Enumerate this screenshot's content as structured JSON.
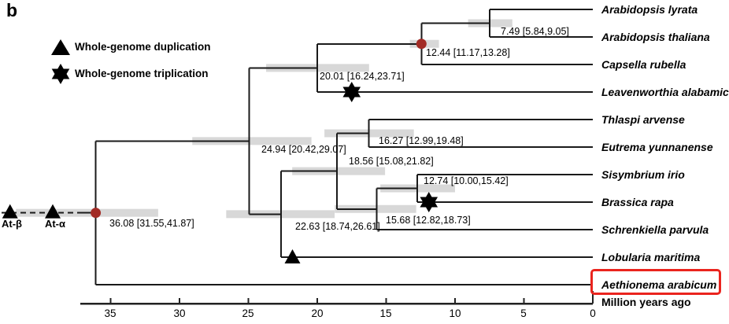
{
  "panel_label": "b",
  "legend": {
    "duplication": "Whole-genome duplication",
    "triplication": "Whole-genome triplication"
  },
  "colors": {
    "branch": "#1a1a1a",
    "ci_bar": "#d8d8d8",
    "node_dot": "#a22b25",
    "highlight_box": "#ea241e",
    "marker": "#000000"
  },
  "chart_data": {
    "type": "phylogenetic_tree",
    "time_axis": {
      "label": "Million years ago",
      "ticks": [
        35,
        30,
        25,
        20,
        15,
        10,
        5,
        0
      ]
    },
    "tips": [
      "Arabidopsis lyrata",
      "Arabidopsis thaliana",
      "Capsella rubella",
      "Leavenworthia alabamica",
      "Thlaspi arvense",
      "Eutrema yunnanense",
      "Sisymbrium irio",
      "Brassica rapa",
      "Schrenkiella parvula",
      "Lobularia maritima",
      "Aethionema arabicum"
    ],
    "highlighted_tip": "Aethionema arabicum",
    "nodes": {
      "n36_08": {
        "age": 36.08,
        "ci": [
          31.55,
          41.87
        ],
        "label": "36.08 [31.55,41.87]",
        "dot": true
      },
      "n24_94": {
        "age": 24.94,
        "ci": [
          20.42,
          29.07
        ],
        "label": "24.94 [20.42,29.07]"
      },
      "n20_01": {
        "age": 20.01,
        "ci": [
          16.24,
          23.71
        ],
        "label": "20.01 [16.24,23.71]"
      },
      "n12_44": {
        "age": 12.44,
        "ci": [
          11.17,
          13.28
        ],
        "label": "12.44 [11.17,13.28]",
        "dot": true
      },
      "n7_49": {
        "age": 7.49,
        "ci": [
          5.84,
          9.05
        ],
        "label": "7.49 [5.84,9.05]"
      },
      "n16_27": {
        "age": 16.27,
        "ci": [
          12.99,
          19.48
        ],
        "label": "16.27 [12.99,19.48]"
      },
      "n18_56": {
        "age": 18.56,
        "ci": [
          15.08,
          21.82
        ],
        "label": "18.56 [15.08,21.82]"
      },
      "n12_74": {
        "age": 12.74,
        "ci": [
          10.0,
          15.42
        ],
        "label": "12.74 [10.00,15.42]"
      },
      "n15_68": {
        "age": 15.68,
        "ci": [
          12.82,
          18.73
        ],
        "label": "15.68 [12.82,18.73]"
      },
      "n22_63": {
        "age": 22.63,
        "ci": [
          18.74,
          26.61
        ],
        "label": "22.63 [18.74,26.61]"
      }
    },
    "tree": {
      "id": "n36_08",
      "children": [
        {
          "id": "n24_94",
          "children": [
            {
              "id": "n20_01",
              "children": [
                {
                  "id": "n12_44",
                  "children": [
                    {
                      "id": "n7_49",
                      "children": [
                        {
                          "tip": 0
                        },
                        {
                          "tip": 1
                        }
                      ]
                    },
                    {
                      "tip": 2
                    }
                  ]
                },
                {
                  "tip": 3,
                  "marker": {
                    "type": "triplication",
                    "mya": 17.5
                  }
                }
              ]
            },
            {
              "id": "n22_63",
              "children": [
                {
                  "id": "n18_56",
                  "children": [
                    {
                      "id": "n16_27",
                      "children": [
                        {
                          "tip": 4
                        },
                        {
                          "tip": 5
                        }
                      ]
                    },
                    {
                      "id": "n15_68",
                      "children": [
                        {
                          "id": "n12_74",
                          "children": [
                            {
                              "tip": 6
                            },
                            {
                              "tip": 7,
                              "marker": {
                                "type": "triplication",
                                "mya": 11.9
                              }
                            }
                          ]
                        },
                        {
                          "tip": 8
                        }
                      ]
                    }
                  ]
                },
                {
                  "tip": 9,
                  "marker": {
                    "type": "duplication",
                    "mya": 21.8
                  }
                }
              ]
            }
          ]
        },
        {
          "tip": 10,
          "highlighted": true
        }
      ]
    },
    "ancient_events": [
      {
        "label": "At-β",
        "type": "duplication",
        "mya": 42.3
      },
      {
        "label": "At-α",
        "type": "duplication",
        "mya": 39.2
      }
    ]
  }
}
